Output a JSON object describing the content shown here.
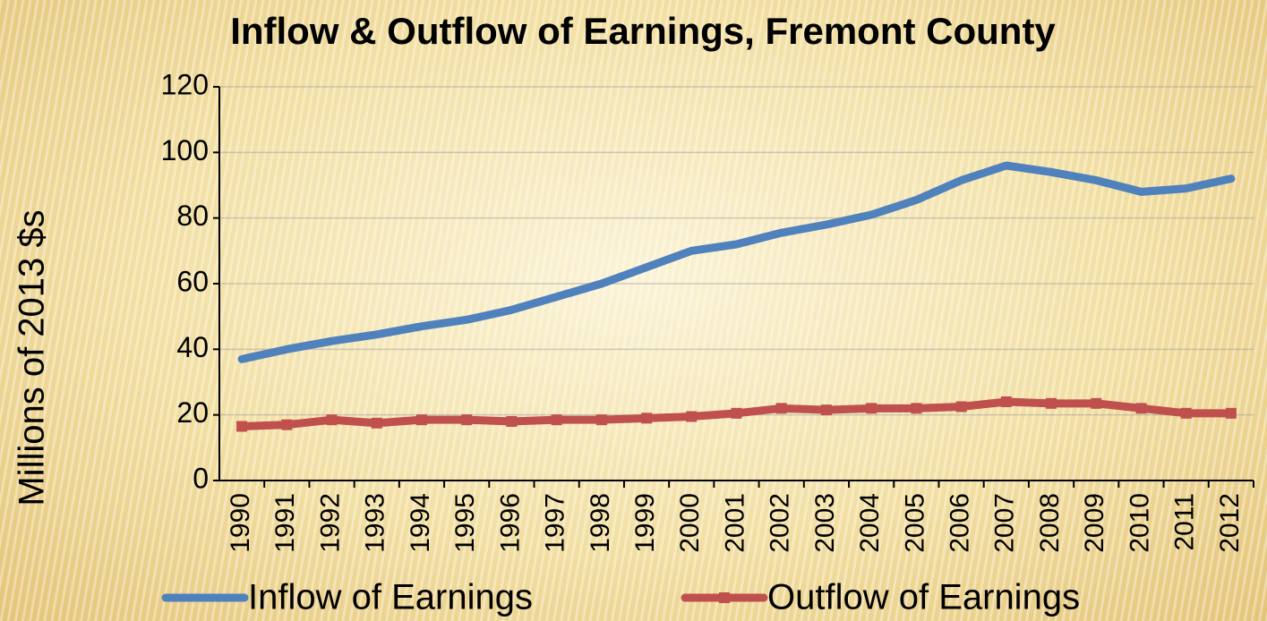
{
  "chart_data": {
    "type": "line",
    "title": "Inflow & Outflow of Earnings, Fremont County",
    "y_label": "Millions of 2013 $s",
    "categories": [
      "1990",
      "1991",
      "1992",
      "1993",
      "1994",
      "1995",
      "1996",
      "1997",
      "1998",
      "1999",
      "2000",
      "2001",
      "2002",
      "2003",
      "2004",
      "2005",
      "2006",
      "2007",
      "2008",
      "2009",
      "2010",
      "2011",
      "2012"
    ],
    "series": [
      {
        "name": "Inflow of Earnings",
        "color": "#4f81bd",
        "marker": "none",
        "values": [
          37,
          40,
          42.5,
          44.5,
          47,
          49,
          52,
          56,
          60,
          65,
          70,
          72,
          75.5,
          78,
          81,
          85.5,
          91.5,
          96,
          94,
          91.5,
          88,
          89,
          92
        ]
      },
      {
        "name": "Outflow of Earnings",
        "color": "#c0504d",
        "marker": "square",
        "values": [
          16.5,
          17,
          18.5,
          17.5,
          18.5,
          18.5,
          18,
          18.5,
          18.5,
          19,
          19.5,
          20.5,
          22,
          21.5,
          22,
          22,
          22.5,
          24,
          23.5,
          23.5,
          22,
          20.5,
          20.5
        ]
      }
    ],
    "ylim": [
      0,
      120
    ],
    "yticks": [
      0,
      20,
      40,
      60,
      80,
      100,
      120
    ],
    "grid": true,
    "legend": "bottom"
  }
}
